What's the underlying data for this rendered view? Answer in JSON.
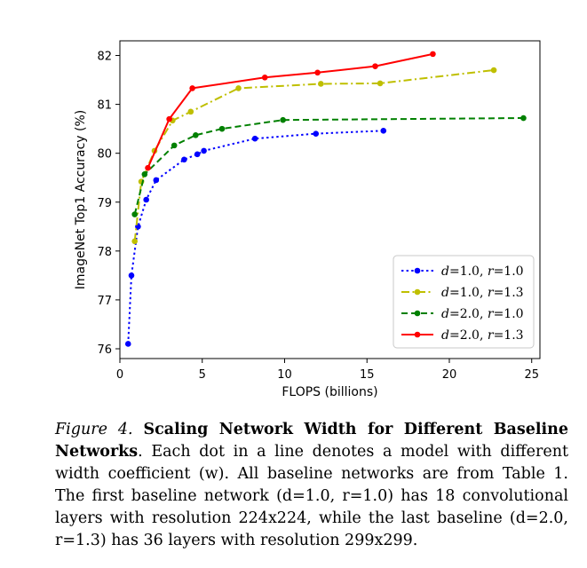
{
  "chart_data": {
    "type": "line",
    "title": "",
    "xlabel": "FLOPS (billions)",
    "ylabel": "ImageNet Top1 Accuracy (%)",
    "xlim": [
      0,
      25.5
    ],
    "ylim": [
      75.8,
      82.3
    ],
    "xticks": [
      0,
      5,
      10,
      15,
      20,
      25
    ],
    "yticks": [
      76,
      77,
      78,
      79,
      80,
      81,
      82
    ],
    "legend_position": "lower-right",
    "series": [
      {
        "name": "d=1.0, r=1.0",
        "legend_parts": [
          "d",
          "=1.0, ",
          "r",
          "=1.0"
        ],
        "color": "#0000ff",
        "linestyle": "dotted",
        "x": [
          0.5,
          0.7,
          1.1,
          1.6,
          2.2,
          3.9,
          4.7,
          5.1,
          8.2,
          11.9,
          16.0
        ],
        "y": [
          76.1,
          77.5,
          78.5,
          79.05,
          79.45,
          79.87,
          79.98,
          80.05,
          80.3,
          80.4,
          80.46
        ]
      },
      {
        "name": "d=1.0, r=1.3",
        "legend_parts": [
          "d",
          "=1.0, ",
          "r",
          "=1.3"
        ],
        "color": "#bfbf00",
        "linestyle": "dashdot",
        "x": [
          0.9,
          1.3,
          2.1,
          3.2,
          4.3,
          7.2,
          12.2,
          15.8,
          22.7
        ],
        "y": [
          78.2,
          79.42,
          80.05,
          80.67,
          80.85,
          81.33,
          81.42,
          81.43,
          81.7
        ]
      },
      {
        "name": "d=2.0, r=1.0",
        "legend_parts": [
          "d",
          "=2.0, ",
          "r",
          "=1.0"
        ],
        "color": "#008000",
        "linestyle": "dashed",
        "x": [
          0.9,
          1.5,
          3.3,
          4.6,
          6.2,
          9.9,
          24.5
        ],
        "y": [
          78.75,
          79.57,
          80.16,
          80.37,
          80.5,
          80.68,
          80.72
        ]
      },
      {
        "name": "d=2.0, r=1.3",
        "legend_parts": [
          "d",
          "=2.0, ",
          "r",
          "=1.3"
        ],
        "color": "#ff0000",
        "linestyle": "solid",
        "x": [
          1.7,
          3.0,
          4.4,
          8.8,
          12.0,
          15.5,
          19.0
        ],
        "y": [
          79.7,
          80.7,
          81.33,
          81.55,
          81.65,
          81.78,
          82.03
        ]
      }
    ]
  },
  "caption": {
    "label": "Figure 4.",
    "title": "Scaling Network Width for Different Baseline Networks",
    "body": ". Each dot in a line denotes a model with different width coefficient (w). All baseline networks are from Table 1. The first baseline network (d=1.0, r=1.0) has 18 convolutional layers with resolution 224x224, while the last baseline (d=2.0, r=1.3) has 36 layers with resolution 299x299."
  }
}
